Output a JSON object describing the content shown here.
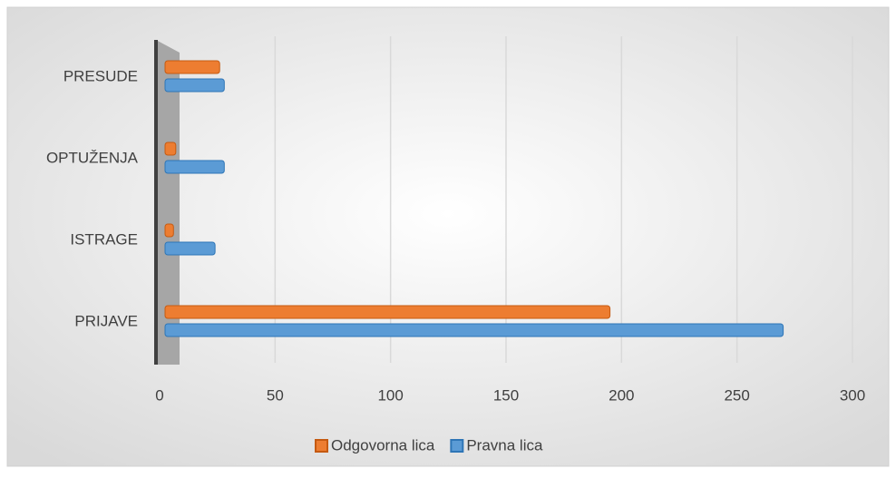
{
  "chart_data": {
    "type": "hbar",
    "categories": [
      "PRIJAVE",
      "ISTRAGE",
      "OPTUŽENJA",
      "PRESUDE"
    ],
    "series": [
      {
        "name": "Odgovorna lica",
        "color": "#ed7d31",
        "values": [
          195,
          6,
          7,
          26
        ]
      },
      {
        "name": "Pravna lica",
        "color": "#5b9bd5",
        "values": [
          270,
          24,
          28,
          28
        ]
      }
    ],
    "xlim": [
      0,
      300
    ],
    "xticks": [
      0,
      50,
      100,
      150,
      200,
      250,
      300
    ],
    "grid": true,
    "legend": "bottom"
  }
}
